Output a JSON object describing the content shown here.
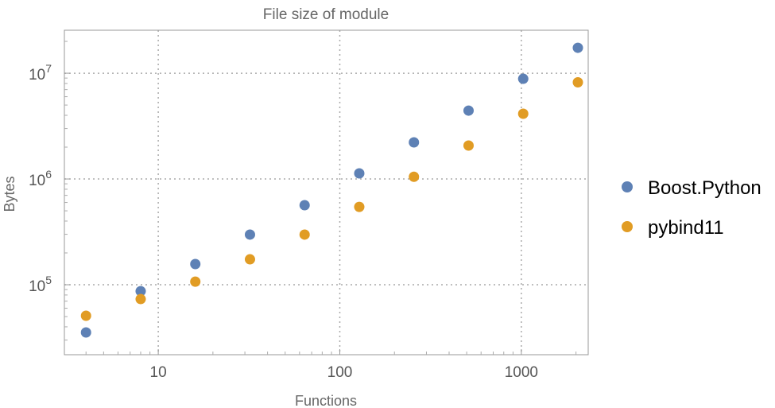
{
  "chart_data": {
    "type": "scatter",
    "title": "File size of module",
    "xlabel": "Functions",
    "ylabel": "Bytes",
    "xscale": "log",
    "yscale": "log",
    "xlim": [
      3.04,
      2335
    ],
    "ylim": [
      21800,
      25500000
    ],
    "grid": true,
    "grid_style": "dotted",
    "legend_position": "right",
    "x_ticks": [
      {
        "value": 10,
        "label": "10"
      },
      {
        "value": 100,
        "label": "100"
      },
      {
        "value": 1000,
        "label": "1000"
      }
    ],
    "y_ticks": [
      {
        "value": 100000,
        "base": "10",
        "exp": "5"
      },
      {
        "value": 1000000,
        "base": "10",
        "exp": "6"
      },
      {
        "value": 10000000,
        "base": "10",
        "exp": "7"
      }
    ],
    "x": [
      4,
      8,
      16,
      32,
      64,
      128,
      256,
      512,
      1024,
      2048
    ],
    "series": [
      {
        "name": "Boost.Python",
        "color": "#5E81B5",
        "values": [
          35400,
          87000,
          157000,
          298000,
          565000,
          1130000,
          2220000,
          4430000,
          8860000,
          17400000
        ]
      },
      {
        "name": "pybind11",
        "color": "#E19C24",
        "values": [
          50900,
          73200,
          107000,
          174000,
          298000,
          545000,
          1050000,
          2070000,
          4140000,
          8200000
        ]
      }
    ]
  }
}
